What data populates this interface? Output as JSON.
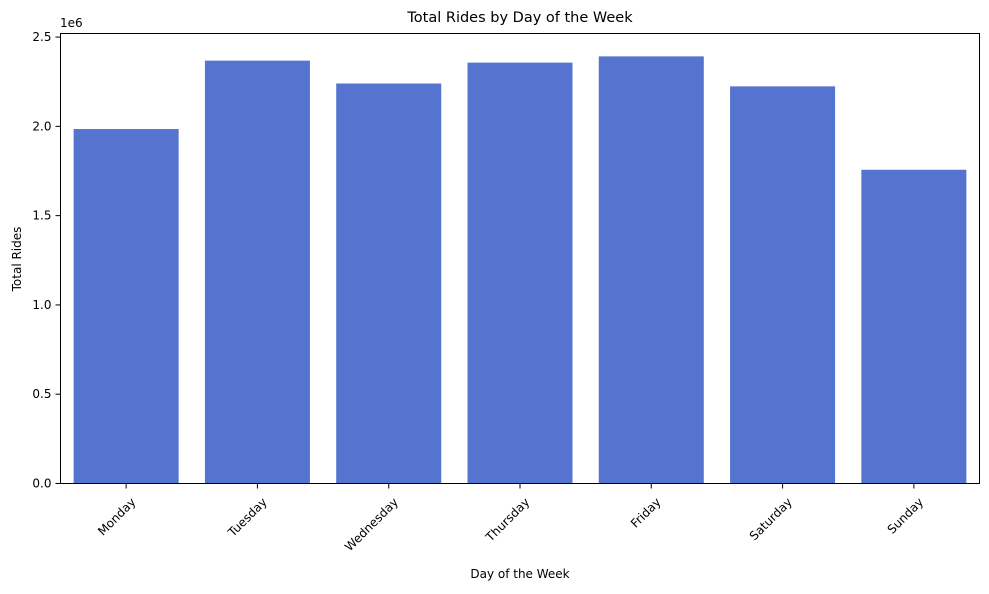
{
  "chart_data": {
    "type": "bar",
    "title": "Total Rides by Day of the Week",
    "xlabel": "Day of the Week",
    "ylabel": "Total Rides",
    "offset_text": "1e6",
    "categories": [
      "Monday",
      "Tuesday",
      "Wednesday",
      "Thursday",
      "Friday",
      "Saturday",
      "Sunday"
    ],
    "values": [
      1985000,
      2368000,
      2240000,
      2357000,
      2392000,
      2224000,
      1757000
    ],
    "ylim": [
      0,
      2520000
    ],
    "yticks": [
      {
        "value": 0,
        "label": "0.0"
      },
      {
        "value": 500000,
        "label": "0.5"
      },
      {
        "value": 1000000,
        "label": "1.0"
      },
      {
        "value": 1500000,
        "label": "1.5"
      },
      {
        "value": 2000000,
        "label": "2.0"
      },
      {
        "value": 2500000,
        "label": "2.5"
      }
    ],
    "bar_color": "#5574cf",
    "grid": false,
    "legend": "none"
  }
}
